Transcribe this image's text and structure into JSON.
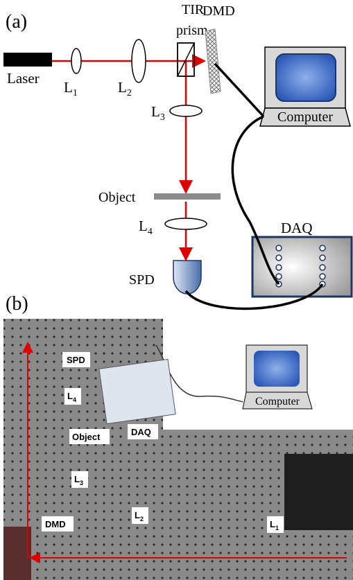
{
  "panel_a": {
    "label": "(a)",
    "laser": "Laser",
    "lens_1": {
      "text": "L",
      "sub": "1"
    },
    "lens_2": {
      "text": "L",
      "sub": "2"
    },
    "lens_3": {
      "text": "L",
      "sub": "3"
    },
    "lens_4": {
      "text": "L",
      "sub": "4"
    },
    "prism": [
      "TIR",
      "prism"
    ],
    "dmd": "DMD",
    "computer": "Computer",
    "object": "Object",
    "daq": "DAQ",
    "spd": "SPD"
  },
  "panel_b": {
    "label": "(b)",
    "spd": "SPD",
    "lens_4": {
      "text": "L",
      "sub": "4"
    },
    "object": "Object",
    "daq": "DAQ",
    "computer": "Computer",
    "lens_3": {
      "text": "L",
      "sub": "3"
    },
    "dmd": "DMD",
    "lens_2": {
      "text": "L",
      "sub": "2"
    },
    "lens_1": {
      "text": "L",
      "sub": "1"
    }
  }
}
